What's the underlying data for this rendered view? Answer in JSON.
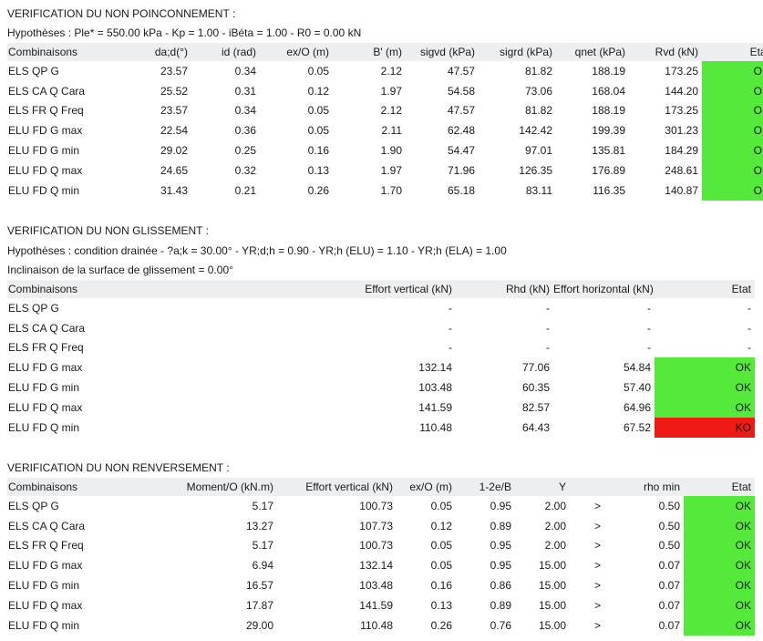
{
  "s1": {
    "title": "VERIFICATION DU NON POINCONNEMENT :",
    "hyp": "Hypothèses : Ple* = 550.00 kPa - Kp = 1.00 - iBéta = 1.00 - R0 = 0.00 kN",
    "headers": [
      "Combinaisons",
      "da;d(°)",
      "id (rad)",
      "ex/O (m)",
      "B' (m)",
      "sigvd (kPa)",
      "sigrd (kPa)",
      "qnet (kPa)",
      "Rvd (kN)",
      "Etat"
    ],
    "rows": [
      [
        "ELS QP G",
        "23.57",
        "0.34",
        "0.05",
        "2.12",
        "47.57",
        "81.82",
        "188.19",
        "173.25",
        "OK"
      ],
      [
        "ELS CA Q Cara",
        "25.52",
        "0.31",
        "0.12",
        "1.97",
        "54.58",
        "73.06",
        "168.04",
        "144.20",
        "OK"
      ],
      [
        "ELS FR Q Freq",
        "23.57",
        "0.34",
        "0.05",
        "2.12",
        "47.57",
        "81.82",
        "188.19",
        "173.25",
        "OK"
      ],
      [
        "ELU FD G max",
        "22.54",
        "0.36",
        "0.05",
        "2.11",
        "62.48",
        "142.42",
        "199.39",
        "301.23",
        "OK"
      ],
      [
        "ELU FD G min",
        "29.02",
        "0.25",
        "0.16",
        "1.90",
        "54.47",
        "97.01",
        "135.81",
        "184.29",
        "OK"
      ],
      [
        "ELU FD Q max",
        "24.65",
        "0.32",
        "0.13",
        "1.97",
        "71.96",
        "126.35",
        "176.89",
        "248.61",
        "OK"
      ],
      [
        "ELU FD Q min",
        "31.43",
        "0.21",
        "0.26",
        "1.70",
        "65.18",
        "83.11",
        "116.35",
        "140.87",
        "OK"
      ]
    ]
  },
  "s2": {
    "title": "VERIFICATION DU NON GLISSEMENT :",
    "hyp": "Hypothèses : condition drainée - ?a;k = 30.00° - YR;d;h = 0.90 - YR;h (ELU) = 1.10 - YR;h (ELA) = 1.00",
    "incl": "Inclinaison de la surface de glissement = 0.00°",
    "headers": [
      "Combinaisons",
      "Effort vertical (kN)",
      "Rhd (kN)",
      "Effort horizontal (kN)",
      "Etat"
    ],
    "rows": [
      [
        "ELS QP G",
        "-",
        "-",
        "-",
        "-"
      ],
      [
        "ELS CA Q Cara",
        "-",
        "-",
        "-",
        "-"
      ],
      [
        "ELS FR Q Freq",
        "-",
        "-",
        "-",
        "-"
      ],
      [
        "ELU FD G max",
        "132.14",
        "77.06",
        "54.84",
        "OK"
      ],
      [
        "ELU FD G min",
        "103.48",
        "60.35",
        "57.40",
        "OK"
      ],
      [
        "ELU FD Q max",
        "141.59",
        "82.57",
        "64.96",
        "OK"
      ],
      [
        "ELU FD Q min",
        "110.48",
        "64.43",
        "67.52",
        "KO"
      ]
    ]
  },
  "s3": {
    "title": "VERIFICATION DU NON RENVERSEMENT :",
    "headers": [
      "Combinaisons",
      "Moment/O (kN.m)",
      "Effort vertical (kN)",
      "ex/O (m)",
      "1-2e/B",
      "Y",
      "",
      "rho min",
      "Etat"
    ],
    "rows": [
      [
        "ELS QP G",
        "5.17",
        "100.73",
        "0.05",
        "0.95",
        "2.00",
        ">",
        "0.50",
        "OK"
      ],
      [
        "ELS CA Q Cara",
        "13.27",
        "107.73",
        "0.12",
        "0.89",
        "2.00",
        ">",
        "0.50",
        "OK"
      ],
      [
        "ELS FR Q Freq",
        "5.17",
        "100.73",
        "0.05",
        "0.95",
        "2.00",
        ">",
        "0.50",
        "OK"
      ],
      [
        "ELU FD G max",
        "6.94",
        "132.14",
        "0.05",
        "0.95",
        "15.00",
        ">",
        "0.07",
        "OK"
      ],
      [
        "ELU FD G min",
        "16.57",
        "103.48",
        "0.16",
        "0.86",
        "15.00",
        ">",
        "0.07",
        "OK"
      ],
      [
        "ELU FD Q max",
        "17.87",
        "141.59",
        "0.13",
        "0.89",
        "15.00",
        ">",
        "0.07",
        "OK"
      ],
      [
        "ELU FD Q min",
        "29.00",
        "110.48",
        "0.26",
        "0.76",
        "15.00",
        ">",
        "0.07",
        "OK"
      ]
    ]
  },
  "colors": {
    "ok": "#55ea3b",
    "ko": "#ee1a13",
    "header": "#eceef0"
  }
}
